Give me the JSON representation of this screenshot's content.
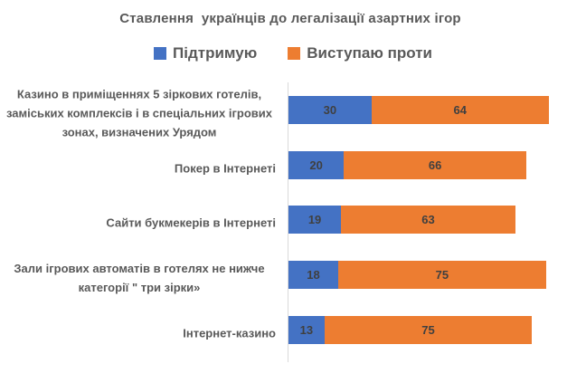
{
  "chart_data": {
    "type": "bar",
    "orientation": "horizontal",
    "stacked": true,
    "title": "Ставлення  українців до легалізації азартних ігор",
    "categories": [
      "Казино в приміщеннях 5 зіркових готелів, заміських комплексів і в спеціальних ігрових зонах, визначених Урядом",
      "Покер в Інтернеті",
      "Сайти букмекерів в Інтернеті",
      "Зали ігрових автоматів в готелях не нижче категорії \" три зірки»",
      "Інтернет-казино"
    ],
    "series": [
      {
        "name": "Підтримую",
        "color": "#4472C4",
        "values": [
          30,
          20,
          19,
          18,
          13
        ]
      },
      {
        "name": "Виступаю проти",
        "color": "#ED7D31",
        "values": [
          64,
          66,
          63,
          75,
          75
        ]
      }
    ],
    "value_labels_shown": true,
    "xlim": [
      0,
      108
    ],
    "grid": false,
    "legend_position": "top",
    "colors": {
      "title_text": "#595959",
      "category_text": "#595959",
      "value_text": "#404040",
      "axis_line": "#d9d9d9",
      "background": "#ffffff"
    }
  }
}
